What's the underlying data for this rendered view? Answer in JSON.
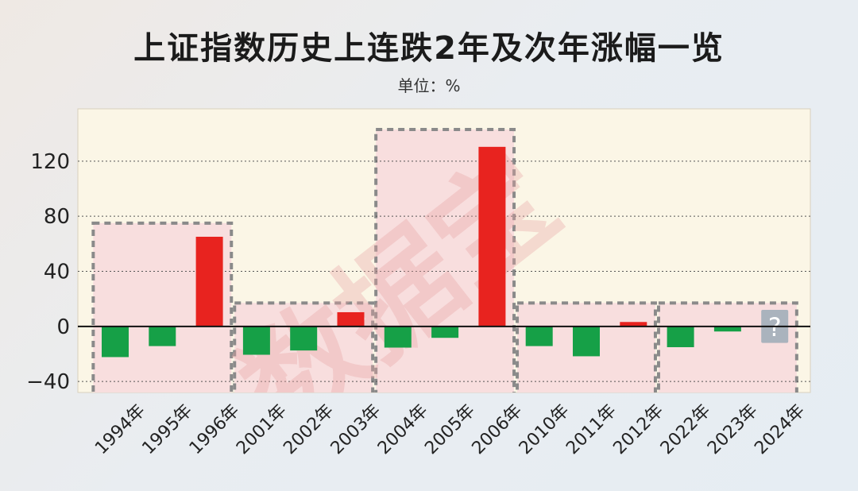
{
  "title": "上证指数历史上连跌2年及次年涨幅一览",
  "unit": "单位：%",
  "watermark": "数据宝",
  "colors": {
    "up": "#e8231f",
    "down": "#16a047",
    "plot_bg": "#fbf6e6",
    "group_bg": "#f8dede",
    "unknown": "#aab3bd"
  },
  "chart_data": {
    "type": "bar",
    "title": "上证指数历史上连跌2年及次年涨幅一览",
    "ylabel": "单位：%",
    "ylim": [
      -48,
      158
    ],
    "yticks": [
      -40,
      0,
      40,
      80,
      120
    ],
    "ytick_labels": [
      "−40",
      "0",
      "40",
      "80",
      "120"
    ],
    "grid": true,
    "categories": [
      "1994年",
      "1995年",
      "1996年",
      "2001年",
      "2002年",
      "2003年",
      "2004年",
      "2005年",
      "2006年",
      "2010年",
      "2011年",
      "2012年",
      "2022年",
      "2023年",
      "2024年"
    ],
    "values": [
      -22.3,
      -14.3,
      65.1,
      -20.6,
      -17.5,
      10.3,
      -15.4,
      -8.3,
      130.4,
      -14.3,
      -21.7,
      3.2,
      -15.1,
      -3.7,
      null
    ],
    "groups": [
      {
        "range": [
          0,
          2
        ],
        "top": 75
      },
      {
        "range": [
          3,
          5
        ],
        "top": 17
      },
      {
        "range": [
          6,
          8
        ],
        "top": 143
      },
      {
        "range": [
          9,
          11
        ],
        "top": 17
      },
      {
        "range": [
          12,
          14
        ],
        "top": 17
      }
    ],
    "unknown_label": "?",
    "unknown_index": 14
  }
}
